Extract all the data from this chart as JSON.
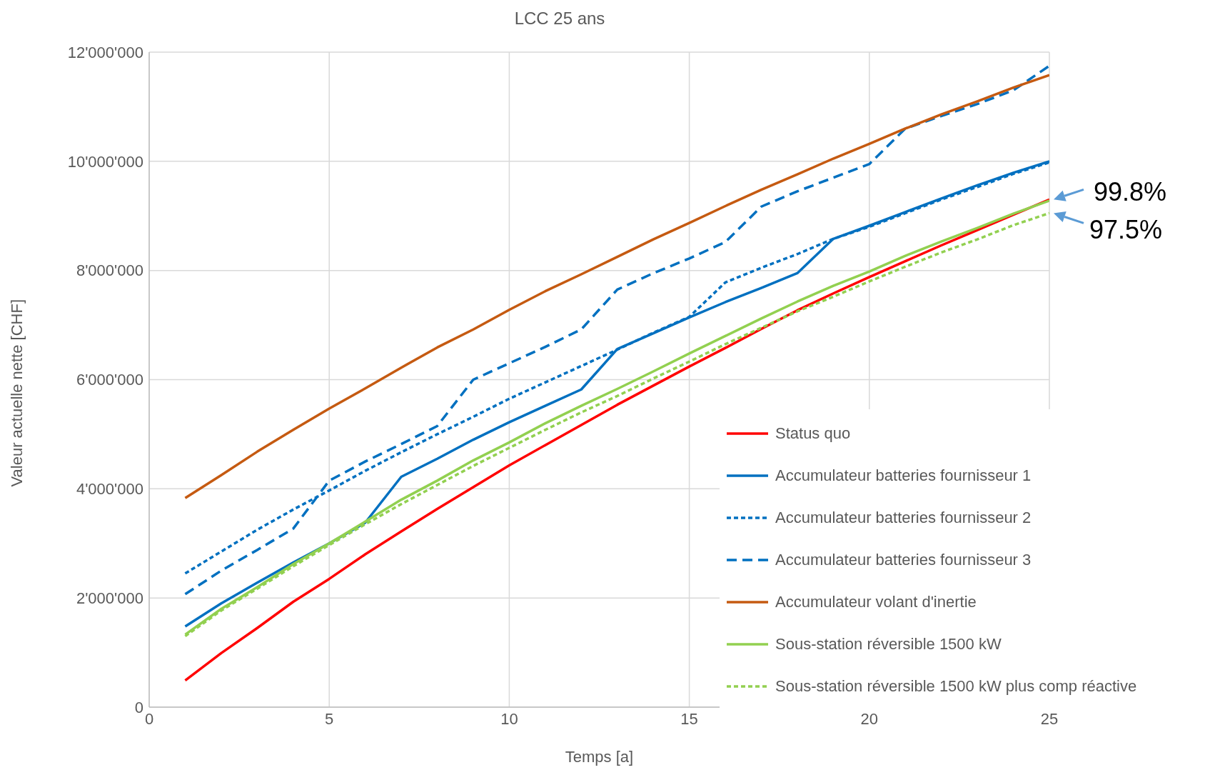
{
  "chart_data": {
    "type": "line",
    "title": "LCC 25 ans",
    "xlabel": "Temps [a]",
    "ylabel": "Valeur actuelle nette [CHF]",
    "x": [
      1,
      2,
      3,
      4,
      5,
      6,
      7,
      8,
      9,
      10,
      11,
      12,
      13,
      14,
      15,
      16,
      17,
      18,
      19,
      20,
      21,
      22,
      23,
      24,
      25
    ],
    "xlim": [
      0,
      25
    ],
    "xticks": [
      0,
      5,
      10,
      15,
      20,
      25
    ],
    "ylim": [
      0,
      12000000
    ],
    "yticks": [
      {
        "value": 0,
        "label": "0"
      },
      {
        "value": 2000000,
        "label": "2'000'000"
      },
      {
        "value": 4000000,
        "label": "4'000'000"
      },
      {
        "value": 6000000,
        "label": "6'000'000"
      },
      {
        "value": 8000000,
        "label": "8'000'000"
      },
      {
        "value": 10000000,
        "label": "10'000'000"
      },
      {
        "value": 12000000,
        "label": "12'000'000"
      }
    ],
    "grid": true,
    "legend": "bottom right",
    "marker": "none",
    "series": [
      {
        "name": "Status quo",
        "color": "#ff0000",
        "line_style": "solid",
        "values": [
          490000,
          990000,
          1450000,
          1930000,
          2350000,
          2800000,
          3220000,
          3630000,
          4030000,
          4430000,
          4800000,
          5170000,
          5540000,
          5890000,
          6240000,
          6580000,
          6930000,
          7270000,
          7580000,
          7880000,
          8170000,
          8460000,
          8740000,
          9020000,
          9300000
        ]
      },
      {
        "name": "Accumulateur batteries fournisseur 1",
        "color": "#0070c0",
        "line_style": "solid",
        "values": [
          1480000,
          1900000,
          2280000,
          2650000,
          3000000,
          3380000,
          4220000,
          4550000,
          4900000,
          5220000,
          5520000,
          5820000,
          6560000,
          6850000,
          7140000,
          7420000,
          7680000,
          7950000,
          8580000,
          8820000,
          9070000,
          9320000,
          9560000,
          9790000,
          10000000
        ]
      },
      {
        "name": "Accumulateur batteries  fournisseur 2",
        "color": "#0070c0",
        "line_style": "dotted",
        "values": [
          2450000,
          2850000,
          3250000,
          3620000,
          3970000,
          4330000,
          4670000,
          5000000,
          5320000,
          5650000,
          5950000,
          6250000,
          6550000,
          6860000,
          7150000,
          7780000,
          8050000,
          8300000,
          8580000,
          8800000,
          9050000,
          9300000,
          9530000,
          9770000,
          9980000
        ]
      },
      {
        "name": "Accumulateur batteries fournisseur 3",
        "color": "#0070c0",
        "line_style": "dashed",
        "values": [
          2070000,
          2500000,
          2880000,
          3270000,
          4150000,
          4500000,
          4820000,
          5150000,
          6000000,
          6300000,
          6600000,
          6920000,
          7650000,
          7950000,
          8220000,
          8520000,
          9170000,
          9450000,
          9700000,
          9950000,
          10600000,
          10830000,
          11050000,
          11300000,
          11750000
        ]
      },
      {
        "name": "Accumulateur volant d'inertie",
        "color": "#c55a11",
        "line_style": "solid",
        "values": [
          3830000,
          4250000,
          4680000,
          5080000,
          5470000,
          5840000,
          6220000,
          6590000,
          6920000,
          7280000,
          7620000,
          7930000,
          8250000,
          8570000,
          8870000,
          9180000,
          9480000,
          9760000,
          10050000,
          10320000,
          10600000,
          10860000,
          11100000,
          11350000,
          11580000
        ]
      },
      {
        "name": "Sous-station réversible 1500 kW",
        "color": "#92d050",
        "line_style": "solid",
        "values": [
          1330000,
          1800000,
          2200000,
          2620000,
          3000000,
          3400000,
          3800000,
          4150000,
          4520000,
          4850000,
          5200000,
          5520000,
          5830000,
          6150000,
          6480000,
          6800000,
          7120000,
          7430000,
          7720000,
          7980000,
          8270000,
          8530000,
          8780000,
          9040000,
          9280000
        ]
      },
      {
        "name": "Sous-station réversible 1500 kW plus comp réactive",
        "color": "#92d050",
        "line_style": "dotted",
        "values": [
          1300000,
          1770000,
          2170000,
          2580000,
          2970000,
          3350000,
          3720000,
          4070000,
          4420000,
          4750000,
          5080000,
          5400000,
          5700000,
          6020000,
          6330000,
          6650000,
          6950000,
          7250000,
          7520000,
          7800000,
          8070000,
          8330000,
          8570000,
          8830000,
          9050000
        ]
      }
    ],
    "annotations": [
      {
        "text": "99.8%",
        "x": 25,
        "y": 9300000
      },
      {
        "text": "97.5%",
        "x": 25,
        "y": 9050000
      }
    ]
  }
}
